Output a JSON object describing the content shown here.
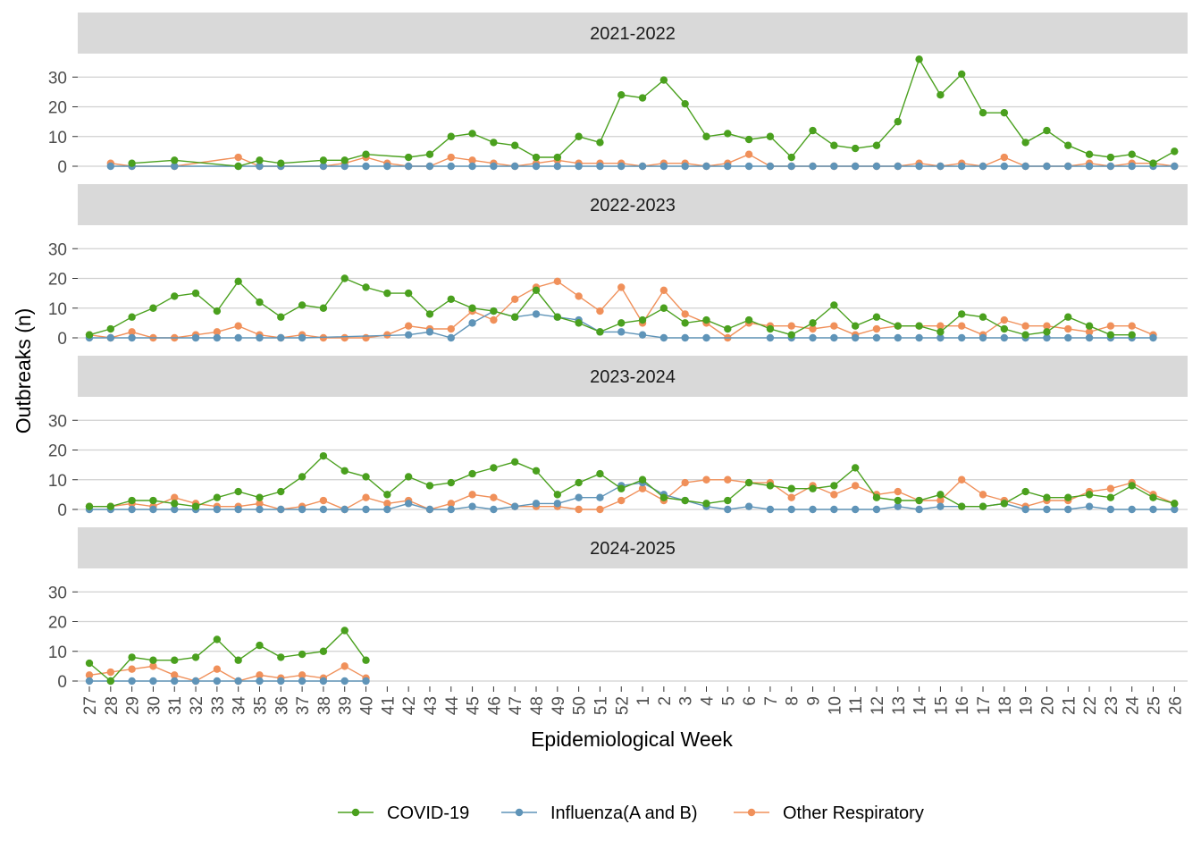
{
  "chart_data": {
    "type": "line",
    "xlabel": "Epidemiological Week",
    "ylabel": "Outbreaks (n)",
    "ylim": [
      0,
      36
    ],
    "yticks": [
      0,
      10,
      20,
      30
    ],
    "categories": [
      "27",
      "28",
      "29",
      "30",
      "31",
      "32",
      "33",
      "34",
      "35",
      "36",
      "37",
      "38",
      "39",
      "40",
      "41",
      "42",
      "43",
      "44",
      "45",
      "46",
      "47",
      "48",
      "49",
      "50",
      "51",
      "52",
      "1",
      "2",
      "3",
      "4",
      "5",
      "6",
      "7",
      "8",
      "9",
      "10",
      "11",
      "12",
      "13",
      "14",
      "15",
      "16",
      "17",
      "18",
      "19",
      "20",
      "21",
      "22",
      "23",
      "24",
      "25",
      "26"
    ],
    "legend": {
      "position": "bottom",
      "items": [
        "COVID-19",
        "Influenza(A and B)",
        "Other Respiratory"
      ]
    },
    "colors": {
      "COVID-19": "#4aa01e",
      "Influenza(A and B)": "#5f94b8",
      "Other Respiratory": "#f0905a"
    },
    "panels": [
      {
        "title": "2021-2022",
        "series": [
          {
            "name": "COVID-19",
            "values": [
              null,
              null,
              1,
              null,
              2,
              null,
              null,
              0,
              2,
              1,
              null,
              2,
              2,
              4,
              null,
              3,
              4,
              10,
              11,
              8,
              7,
              3,
              3,
              10,
              8,
              24,
              23,
              29,
              21,
              10,
              11,
              9,
              10,
              3,
              12,
              7,
              6,
              7,
              15,
              36,
              24,
              31,
              18,
              18,
              8,
              12,
              7,
              4,
              3,
              4,
              1,
              5
            ]
          },
          {
            "name": "Influenza(A and B)",
            "values": [
              null,
              0,
              0,
              null,
              0,
              null,
              null,
              0,
              0,
              0,
              null,
              0,
              0,
              0,
              0,
              0,
              0,
              0,
              0,
              0,
              0,
              0,
              0,
              0,
              0,
              0,
              0,
              0,
              0,
              0,
              0,
              0,
              0,
              0,
              0,
              0,
              0,
              0,
              0,
              0,
              0,
              0,
              0,
              0,
              0,
              0,
              0,
              0,
              0,
              0,
              0,
              0
            ]
          },
          {
            "name": "Other Respiratory",
            "values": [
              null,
              1,
              0,
              null,
              0,
              null,
              null,
              3,
              0,
              0,
              null,
              0,
              1,
              3,
              1,
              0,
              0,
              3,
              2,
              1,
              0,
              1,
              2,
              1,
              1,
              1,
              0,
              1,
              1,
              0,
              1,
              4,
              0,
              0,
              0,
              0,
              0,
              0,
              0,
              1,
              0,
              1,
              0,
              3,
              0,
              0,
              0,
              1,
              0,
              1,
              1,
              0
            ]
          }
        ]
      },
      {
        "title": "2022-2023",
        "series": [
          {
            "name": "COVID-19",
            "values": [
              1,
              3,
              7,
              10,
              14,
              15,
              9,
              19,
              12,
              7,
              11,
              10,
              20,
              17,
              15,
              15,
              8,
              13,
              10,
              9,
              7,
              16,
              7,
              5,
              2,
              5,
              6,
              10,
              5,
              6,
              3,
              6,
              3,
              1,
              5,
              11,
              4,
              7,
              4,
              4,
              2,
              8,
              7,
              3,
              1,
              2,
              7,
              4,
              1,
              1,
              null,
              null
            ]
          },
          {
            "name": "Influenza(A and B)",
            "values": [
              0,
              0,
              0,
              null,
              null,
              0,
              0,
              0,
              0,
              0,
              0,
              null,
              null,
              null,
              null,
              1,
              2,
              0,
              5,
              9,
              7,
              8,
              7,
              6,
              2,
              2,
              1,
              0,
              0,
              0,
              null,
              null,
              0,
              0,
              0,
              0,
              0,
              0,
              0,
              0,
              0,
              0,
              0,
              0,
              0,
              0,
              0,
              0,
              0,
              0,
              0,
              null
            ]
          },
          {
            "name": "Other Respiratory",
            "values": [
              1,
              0,
              2,
              0,
              0,
              1,
              2,
              4,
              1,
              0,
              1,
              0,
              0,
              0,
              1,
              4,
              3,
              3,
              9,
              6,
              13,
              17,
              19,
              14,
              9,
              17,
              5,
              16,
              8,
              5,
              0,
              5,
              4,
              4,
              3,
              4,
              1,
              3,
              4,
              4,
              4,
              4,
              1,
              6,
              4,
              4,
              3,
              2,
              4,
              4,
              1,
              null
            ]
          }
        ]
      },
      {
        "title": "2023-2024",
        "series": [
          {
            "name": "COVID-19",
            "values": [
              1,
              1,
              3,
              3,
              2,
              1,
              4,
              6,
              4,
              6,
              11,
              18,
              13,
              11,
              5,
              11,
              8,
              9,
              12,
              14,
              16,
              13,
              5,
              9,
              12,
              7,
              10,
              4,
              3,
              2,
              3,
              9,
              8,
              7,
              7,
              8,
              14,
              4,
              3,
              3,
              5,
              1,
              1,
              2,
              6,
              4,
              4,
              5,
              4,
              8,
              4,
              2
            ]
          },
          {
            "name": "Influenza(A and B)",
            "values": [
              0,
              0,
              0,
              0,
              0,
              0,
              0,
              0,
              0,
              0,
              0,
              0,
              0,
              0,
              0,
              2,
              0,
              0,
              1,
              0,
              1,
              2,
              2,
              4,
              4,
              8,
              9,
              5,
              3,
              1,
              0,
              1,
              0,
              0,
              0,
              0,
              0,
              0,
              1,
              0,
              1,
              1,
              1,
              2,
              0,
              0,
              0,
              1,
              0,
              0,
              0,
              0
            ]
          },
          {
            "name": "Other Respiratory",
            "values": [
              1,
              1,
              2,
              1,
              4,
              2,
              1,
              1,
              2,
              0,
              1,
              3,
              0,
              4,
              2,
              3,
              0,
              2,
              5,
              4,
              1,
              1,
              1,
              0,
              0,
              3,
              7,
              3,
              9,
              10,
              10,
              9,
              9,
              4,
              8,
              5,
              8,
              5,
              6,
              3,
              3,
              10,
              5,
              3,
              1,
              3,
              3,
              6,
              7,
              9,
              5,
              2
            ]
          }
        ]
      },
      {
        "title": "2024-2025",
        "series": [
          {
            "name": "COVID-19",
            "values": [
              6,
              0,
              8,
              7,
              7,
              8,
              14,
              7,
              12,
              8,
              9,
              10,
              17,
              7,
              null,
              null,
              null,
              null,
              null,
              null,
              null,
              null,
              null,
              null,
              null,
              null,
              null,
              null,
              null,
              null,
              null,
              null,
              null,
              null,
              null,
              null,
              null,
              null,
              null,
              null,
              null,
              null,
              null,
              null,
              null,
              null,
              null,
              null,
              null,
              null,
              null,
              null
            ]
          },
          {
            "name": "Influenza(A and B)",
            "values": [
              0,
              0,
              0,
              0,
              0,
              0,
              0,
              0,
              0,
              0,
              0,
              0,
              0,
              0,
              null,
              null,
              null,
              null,
              null,
              null,
              null,
              null,
              null,
              null,
              null,
              null,
              null,
              null,
              null,
              null,
              null,
              null,
              null,
              null,
              null,
              null,
              null,
              null,
              null,
              null,
              null,
              null,
              null,
              null,
              null,
              null,
              null,
              null,
              null,
              null,
              null,
              null
            ]
          },
          {
            "name": "Other Respiratory",
            "values": [
              2,
              3,
              4,
              5,
              2,
              0,
              4,
              0,
              2,
              1,
              2,
              1,
              5,
              1,
              null,
              null,
              null,
              null,
              null,
              null,
              null,
              null,
              null,
              null,
              null,
              null,
              null,
              null,
              null,
              null,
              null,
              null,
              null,
              null,
              null,
              null,
              null,
              null,
              null,
              null,
              null,
              null,
              null,
              null,
              null,
              null,
              null,
              null,
              null,
              null,
              null,
              null
            ]
          }
        ]
      }
    ]
  }
}
